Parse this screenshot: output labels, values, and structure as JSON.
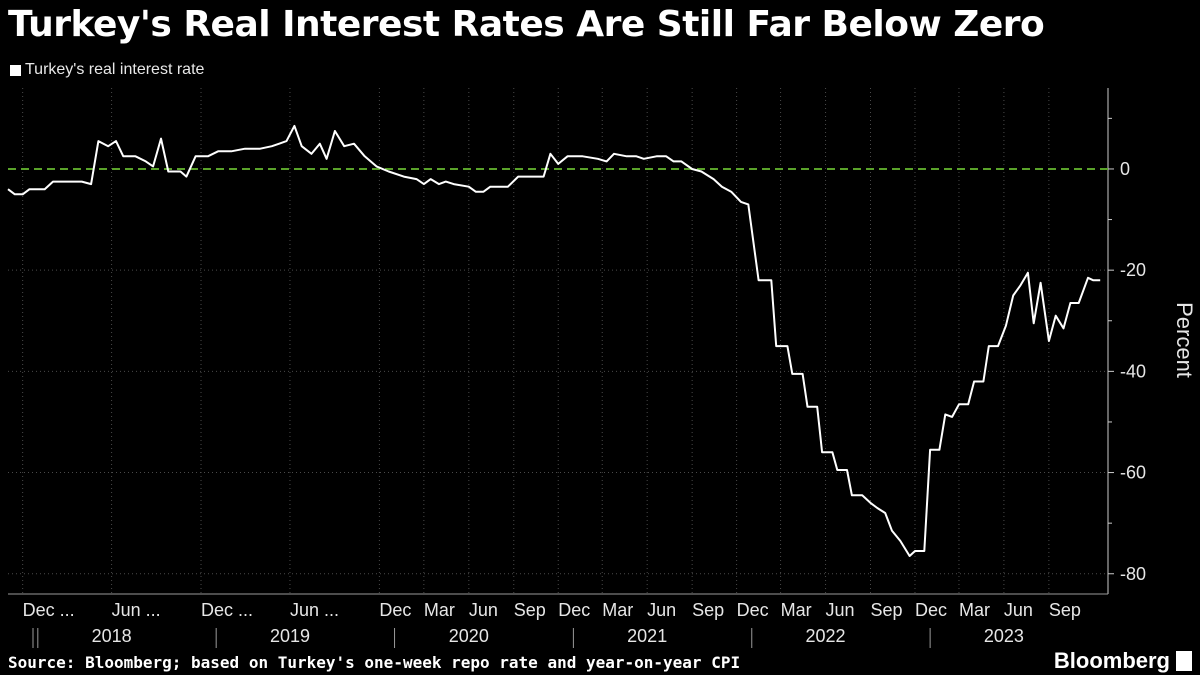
{
  "title": "Turkey's Real Interest Rates Are Still Far Below Zero",
  "legend": {
    "label": "Turkey's real interest rate",
    "color": "#ffffff"
  },
  "footer": {
    "source": "Source: Bloomberg; based on Turkey's one-week repo rate and year-on-year CPI",
    "brand": "Bloomberg"
  },
  "colors": {
    "background": "#000000",
    "line": "#ffffff",
    "zero_line": "#5aa32a",
    "grid": "#4a4a4a"
  },
  "chart_data": {
    "type": "line",
    "title": "Turkey's Real Interest Rates Are Still Far Below Zero",
    "ylabel": "Percent",
    "xlabel": "",
    "ylim": [
      -84,
      16
    ],
    "yticks": [
      0,
      -20,
      -40,
      -60,
      -80
    ],
    "grid": true,
    "legend_position": "top-left",
    "x_axis": {
      "start": "2017-11",
      "end": "2023-12",
      "month_ticks": [
        {
          "label": "Dec ...",
          "date": "2017-12"
        },
        {
          "label": "Jun ...",
          "date": "2018-06"
        },
        {
          "label": "Dec ...",
          "date": "2018-12"
        },
        {
          "label": "Jun ...",
          "date": "2019-06"
        },
        {
          "label": "Dec",
          "date": "2019-12"
        },
        {
          "label": "Mar",
          "date": "2020-03"
        },
        {
          "label": "Jun",
          "date": "2020-06"
        },
        {
          "label": "Sep",
          "date": "2020-09"
        },
        {
          "label": "Dec",
          "date": "2020-12"
        },
        {
          "label": "Mar",
          "date": "2021-03"
        },
        {
          "label": "Jun",
          "date": "2021-06"
        },
        {
          "label": "Sep",
          "date": "2021-09"
        },
        {
          "label": "Dec",
          "date": "2021-12"
        },
        {
          "label": "Mar",
          "date": "2022-03"
        },
        {
          "label": "Jun",
          "date": "2022-06"
        },
        {
          "label": "Sep",
          "date": "2022-09"
        },
        {
          "label": "Dec",
          "date": "2022-12"
        },
        {
          "label": "Mar",
          "date": "2023-03"
        },
        {
          "label": "Jun",
          "date": "2023-06"
        },
        {
          "label": "Sep",
          "date": "2023-09"
        }
      ],
      "years": [
        {
          "label": "2018",
          "date": "2018-06"
        },
        {
          "label": "2019",
          "date": "2019-06"
        },
        {
          "label": "2020",
          "date": "2020-06"
        },
        {
          "label": "2021",
          "date": "2021-06"
        },
        {
          "label": "2022",
          "date": "2022-06"
        },
        {
          "label": "2023",
          "date": "2023-06"
        }
      ]
    },
    "series": [
      {
        "name": "Turkey's real interest rate",
        "points": [
          [
            "2017-11-01",
            -4.0
          ],
          [
            "2017-11-15",
            -5.0
          ],
          [
            "2017-12-01",
            -5.0
          ],
          [
            "2017-12-15",
            -4.0
          ],
          [
            "2018-01-15",
            -4.0
          ],
          [
            "2018-02-01",
            -2.5
          ],
          [
            "2018-03-01",
            -2.5
          ],
          [
            "2018-04-01",
            -2.5
          ],
          [
            "2018-04-20",
            -3.0
          ],
          [
            "2018-05-05",
            5.5
          ],
          [
            "2018-05-25",
            4.5
          ],
          [
            "2018-06-10",
            5.5
          ],
          [
            "2018-06-25",
            2.5
          ],
          [
            "2018-07-20",
            2.5
          ],
          [
            "2018-08-10",
            1.5
          ],
          [
            "2018-08-25",
            0.5
          ],
          [
            "2018-09-10",
            6.0
          ],
          [
            "2018-09-25",
            -0.5
          ],
          [
            "2018-10-20",
            -0.5
          ],
          [
            "2018-11-01",
            -1.5
          ],
          [
            "2018-11-20",
            2.5
          ],
          [
            "2018-12-15",
            2.5
          ],
          [
            "2019-01-05",
            3.5
          ],
          [
            "2019-02-01",
            3.5
          ],
          [
            "2019-03-01",
            4.0
          ],
          [
            "2019-04-01",
            4.0
          ],
          [
            "2019-04-25",
            4.5
          ],
          [
            "2019-05-10",
            5.0
          ],
          [
            "2019-05-25",
            5.5
          ],
          [
            "2019-06-10",
            8.5
          ],
          [
            "2019-06-25",
            4.5
          ],
          [
            "2019-07-15",
            3.0
          ],
          [
            "2019-08-01",
            5.0
          ],
          [
            "2019-08-15",
            2.0
          ],
          [
            "2019-09-01",
            7.5
          ],
          [
            "2019-09-20",
            4.5
          ],
          [
            "2019-10-10",
            5.0
          ],
          [
            "2019-11-01",
            2.5
          ],
          [
            "2019-11-25",
            0.5
          ],
          [
            "2019-12-20",
            -0.5
          ],
          [
            "2020-01-20",
            -1.5
          ],
          [
            "2020-02-15",
            -2.0
          ],
          [
            "2020-03-01",
            -3.0
          ],
          [
            "2020-03-15",
            -2.0
          ],
          [
            "2020-04-01",
            -3.0
          ],
          [
            "2020-04-15",
            -2.5
          ],
          [
            "2020-05-01",
            -3.0
          ],
          [
            "2020-06-01",
            -3.5
          ],
          [
            "2020-06-15",
            -4.5
          ],
          [
            "2020-07-01",
            -4.5
          ],
          [
            "2020-07-15",
            -3.5
          ],
          [
            "2020-08-20",
            -3.5
          ],
          [
            "2020-09-10",
            -1.5
          ],
          [
            "2020-10-15",
            -1.5
          ],
          [
            "2020-11-01",
            -1.5
          ],
          [
            "2020-11-15",
            3.0
          ],
          [
            "2020-12-01",
            1.0
          ],
          [
            "2020-12-20",
            2.5
          ],
          [
            "2021-01-20",
            2.5
          ],
          [
            "2021-02-20",
            2.0
          ],
          [
            "2021-03-10",
            1.5
          ],
          [
            "2021-03-25",
            3.0
          ],
          [
            "2021-04-20",
            2.5
          ],
          [
            "2021-05-10",
            2.5
          ],
          [
            "2021-05-25",
            2.0
          ],
          [
            "2021-06-20",
            2.5
          ],
          [
            "2021-07-10",
            2.5
          ],
          [
            "2021-07-25",
            1.5
          ],
          [
            "2021-08-10",
            1.5
          ],
          [
            "2021-09-01",
            0.0
          ],
          [
            "2021-09-20",
            -0.5
          ],
          [
            "2021-10-15",
            -2.0
          ],
          [
            "2021-11-01",
            -3.5
          ],
          [
            "2021-11-20",
            -4.5
          ],
          [
            "2021-12-10",
            -6.5
          ],
          [
            "2021-12-25",
            -7.0
          ],
          [
            "2022-01-15",
            -22.0
          ],
          [
            "2022-02-10",
            -22.0
          ],
          [
            "2022-02-20",
            -35.0
          ],
          [
            "2022-03-15",
            -35.0
          ],
          [
            "2022-03-25",
            -40.5
          ],
          [
            "2022-04-15",
            -40.5
          ],
          [
            "2022-04-25",
            -47.0
          ],
          [
            "2022-05-15",
            -47.0
          ],
          [
            "2022-05-25",
            -56.0
          ],
          [
            "2022-06-15",
            -56.0
          ],
          [
            "2022-06-25",
            -59.5
          ],
          [
            "2022-07-15",
            -59.5
          ],
          [
            "2022-07-25",
            -64.5
          ],
          [
            "2022-08-15",
            -64.5
          ],
          [
            "2022-09-01",
            -66.0
          ],
          [
            "2022-09-15",
            -67.0
          ],
          [
            "2022-10-01",
            -68.0
          ],
          [
            "2022-10-15",
            -71.5
          ],
          [
            "2022-11-01",
            -73.5
          ],
          [
            "2022-11-20",
            -76.5
          ],
          [
            "2022-12-01",
            -75.5
          ],
          [
            "2022-12-20",
            -75.5
          ],
          [
            "2023-01-01",
            -55.5
          ],
          [
            "2023-01-20",
            -55.5
          ],
          [
            "2023-02-01",
            -48.5
          ],
          [
            "2023-02-15",
            -49.0
          ],
          [
            "2023-03-01",
            -46.5
          ],
          [
            "2023-03-20",
            -46.5
          ],
          [
            "2023-04-01",
            -42.0
          ],
          [
            "2023-04-20",
            -42.0
          ],
          [
            "2023-05-01",
            -35.0
          ],
          [
            "2023-05-20",
            -35.0
          ],
          [
            "2023-06-05",
            -31.0
          ],
          [
            "2023-06-20",
            -25.0
          ],
          [
            "2023-07-05",
            -23.0
          ],
          [
            "2023-07-20",
            -20.5
          ],
          [
            "2023-08-01",
            -30.5
          ],
          [
            "2023-08-15",
            -22.5
          ],
          [
            "2023-09-01",
            -34.0
          ],
          [
            "2023-09-15",
            -29.0
          ],
          [
            "2023-10-01",
            -31.5
          ],
          [
            "2023-10-15",
            -26.5
          ],
          [
            "2023-11-01",
            -26.5
          ],
          [
            "2023-11-20",
            -21.5
          ],
          [
            "2023-12-01",
            -22.0
          ],
          [
            "2023-12-15",
            -22.0
          ]
        ]
      }
    ]
  }
}
